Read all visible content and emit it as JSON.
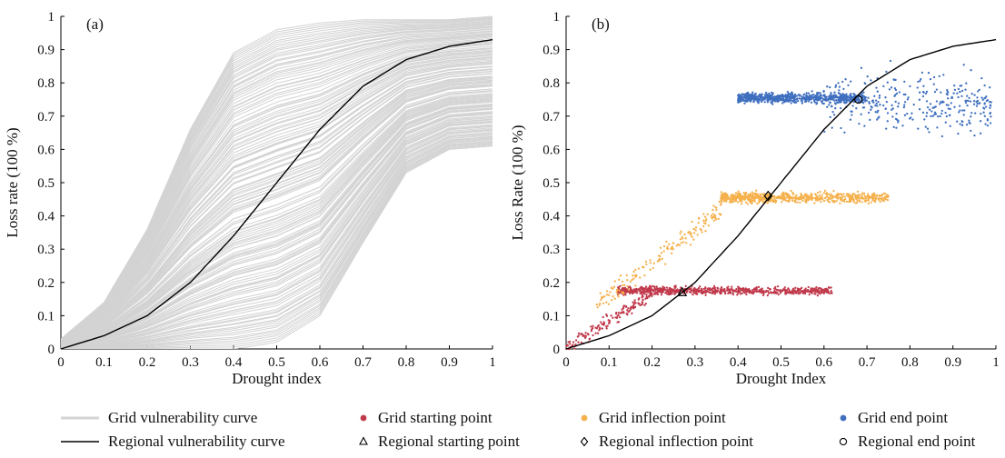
{
  "chart_data": [
    {
      "panel_label": "(a)",
      "type": "line",
      "xlabel": "Drought index",
      "ylabel": "Loss rate (100 %)",
      "xlim": [
        0,
        1
      ],
      "ylim": [
        0,
        1
      ],
      "xticks": [
        "0",
        "0.1",
        "0.2",
        "0.3",
        "0.4",
        "0.5",
        "0.6",
        "0.7",
        "0.8",
        "0.9",
        "1"
      ],
      "yticks": [
        "0",
        "0.1",
        "0.2",
        "0.3",
        "0.4",
        "0.5",
        "0.6",
        "0.7",
        "0.8",
        "0.9",
        "1"
      ],
      "grid": false,
      "series": [
        {
          "name": "Grid vulnerability curve",
          "kind": "curve-ensemble",
          "color": "#d3d3d3",
          "envelope_upper": {
            "x": [
              0,
              0.1,
              0.2,
              0.3,
              0.4,
              0.5,
              0.6,
              0.7,
              0.8,
              0.9,
              1
            ],
            "y": [
              0.03,
              0.14,
              0.36,
              0.66,
              0.89,
              0.96,
              0.98,
              0.99,
              0.99,
              0.99,
              1.0
            ]
          },
          "envelope_lower": {
            "x": [
              0,
              0.1,
              0.2,
              0.3,
              0.4,
              0.5,
              0.6,
              0.7,
              0.8,
              0.9,
              1
            ],
            "y": [
              0.0,
              0.0,
              0.0,
              0.0,
              0.0,
              0.02,
              0.1,
              0.32,
              0.53,
              0.6,
              0.61
            ]
          }
        },
        {
          "name": "Regional vulnerability curve",
          "color": "#000000",
          "x": [
            0,
            0.1,
            0.2,
            0.3,
            0.4,
            0.5,
            0.6,
            0.7,
            0.8,
            0.9,
            1
          ],
          "y": [
            0.0,
            0.04,
            0.1,
            0.2,
            0.34,
            0.5,
            0.66,
            0.79,
            0.87,
            0.91,
            0.93
          ]
        }
      ]
    },
    {
      "panel_label": "(b)",
      "type": "scatter",
      "xlabel": "Drought Index",
      "ylabel": "Loss Rate (100 %)",
      "xlim": [
        0,
        1
      ],
      "ylim": [
        0,
        1
      ],
      "xticks": [
        "0",
        "0.1",
        "0.2",
        "0.3",
        "0.4",
        "0.5",
        "0.6",
        "0.7",
        "0.8",
        "0.9",
        "1"
      ],
      "yticks": [
        "0",
        "0.1",
        "0.2",
        "0.3",
        "0.4",
        "0.5",
        "0.6",
        "0.7",
        "0.8",
        "0.9",
        "1"
      ],
      "grid": false,
      "series": [
        {
          "name": "Grid starting point",
          "kind": "point-cloud",
          "color": "#c0394b",
          "clusters": [
            {
              "x_range": [
                0.0,
                0.2
              ],
              "y_range": [
                0.0,
                0.17
              ],
              "trend": "rising"
            },
            {
              "x_range": [
                0.12,
                0.62
              ],
              "y_range": [
                0.14,
                0.21
              ],
              "trend": "flat"
            }
          ]
        },
        {
          "name": "Grid inflection point",
          "kind": "point-cloud",
          "color": "#f5b14c",
          "clusters": [
            {
              "x_range": [
                0.07,
                0.36
              ],
              "y_range": [
                0.13,
                0.42
              ],
              "trend": "rising"
            },
            {
              "x_range": [
                0.36,
                0.75
              ],
              "y_range": [
                0.41,
                0.5
              ],
              "trend": "flat"
            }
          ]
        },
        {
          "name": "Grid end point",
          "kind": "point-cloud",
          "color": "#3f6fbf",
          "clusters": [
            {
              "x_range": [
                0.4,
                0.7
              ],
              "y_range": [
                0.71,
                0.8
              ],
              "trend": "flat"
            },
            {
              "x_range": [
                0.6,
                0.99
              ],
              "y_range": [
                0.6,
                0.88
              ],
              "trend": "spread"
            }
          ]
        },
        {
          "name": "Regional vulnerability curve",
          "color": "#000000",
          "x": [
            0,
            0.1,
            0.2,
            0.3,
            0.4,
            0.5,
            0.6,
            0.7,
            0.8,
            0.9,
            1
          ],
          "y": [
            0.0,
            0.04,
            0.1,
            0.2,
            0.34,
            0.5,
            0.66,
            0.79,
            0.87,
            0.91,
            0.93
          ]
        },
        {
          "name": "Regional starting point",
          "marker": "triangle",
          "x": [
            0.27
          ],
          "y": [
            0.17
          ]
        },
        {
          "name": "Regional inflection point",
          "marker": "diamond",
          "x": [
            0.47
          ],
          "y": [
            0.46
          ]
        },
        {
          "name": "Regional end point",
          "marker": "circle",
          "x": [
            0.68
          ],
          "y": [
            0.75
          ]
        }
      ]
    }
  ],
  "legend": {
    "placement": "bottom",
    "items": [
      {
        "id": "grid-curve",
        "label": "Grid vulnerability curve",
        "symbol": "line",
        "color": "#d3d3d3"
      },
      {
        "id": "grid-start",
        "label": "Grid starting point",
        "symbol": "dot",
        "color": "#c0394b"
      },
      {
        "id": "grid-inflect",
        "label": "Grid inflection point",
        "symbol": "dot",
        "color": "#f5b14c"
      },
      {
        "id": "grid-end",
        "label": "Grid end point",
        "symbol": "dot",
        "color": "#3f6fbf"
      },
      {
        "id": "regional-curve",
        "label": "Regional vulnerability curve",
        "symbol": "line",
        "color": "#000000"
      },
      {
        "id": "regional-start",
        "label": "Regional starting point",
        "symbol": "triangle",
        "color": "#000000"
      },
      {
        "id": "regional-inflect",
        "label": "Regional inflection point",
        "symbol": "diamond",
        "color": "#000000"
      },
      {
        "id": "regional-end",
        "label": "Regional end point",
        "symbol": "circle",
        "color": "#000000"
      }
    ]
  }
}
